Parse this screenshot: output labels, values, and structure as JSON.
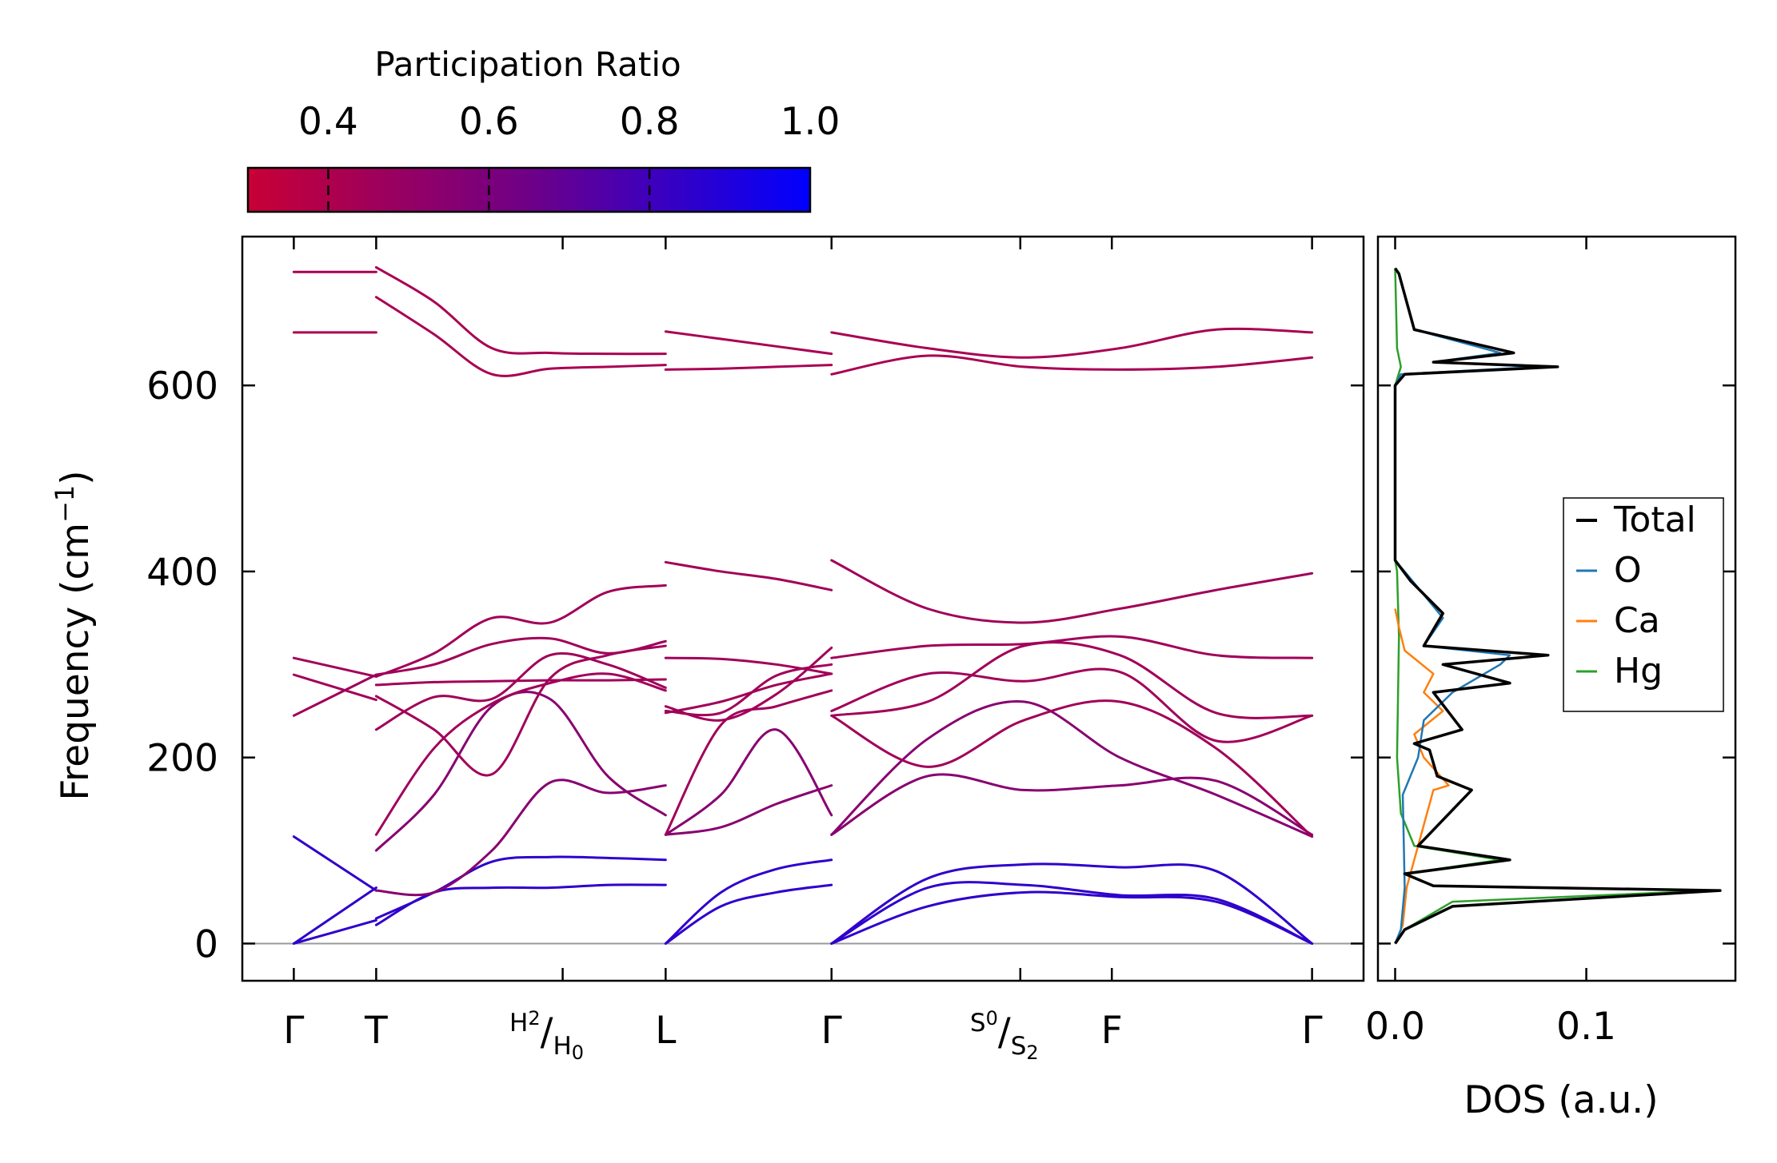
{
  "chart_data": [
    {
      "type": "line",
      "subtype": "phonon-band-structure",
      "ylabel": "Frequency (cm",
      "ylabel_sup": "−1",
      "ylabel_end": ")",
      "ylim": [
        -40,
        760
      ],
      "yticks": [
        {
          "value": 0,
          "label": "0"
        },
        {
          "value": 200,
          "label": "200"
        },
        {
          "value": 400,
          "label": "400"
        },
        {
          "value": 600,
          "label": "600"
        }
      ],
      "kticks": [
        {
          "k": 0.0,
          "label": "Γ"
        },
        {
          "k": 0.72,
          "label": "T"
        },
        {
          "k": 2.35,
          "label": "H",
          "label_sub": "2",
          "label2": "H",
          "label2_sub": "0"
        },
        {
          "k": 3.25,
          "label": "L"
        },
        {
          "k": 4.7,
          "label": "Γ"
        },
        {
          "k": 6.35,
          "label": "S",
          "label_sub": "0",
          "label2": "S",
          "label2_sub": "2"
        },
        {
          "k": 7.15,
          "label": "F"
        },
        {
          "k": 8.9,
          "label": "Γ"
        }
      ],
      "xlim": [
        -0.45,
        9.35
      ],
      "segments": [
        {
          "k_start": 0.0,
          "k_end": 0.72,
          "bands": [
            [
              0,
              60
            ],
            [
              0,
              25
            ],
            [
              115,
              57
            ],
            [
              245,
              289
            ],
            [
              289,
              262
            ],
            [
              307,
              287
            ],
            [
              657,
              657
            ],
            [
              722,
              722
            ]
          ]
        },
        {
          "k_start": 0.72,
          "k_end": 3.25,
          "bands": [
            [
              20,
              55,
              60,
              60,
              63,
              63
            ],
            [
              27,
              55,
              88,
              93,
              92,
              90
            ],
            [
              57,
              55,
              100,
              173,
              162,
              170
            ],
            [
              100,
              160,
              255,
              263,
              180,
              138
            ],
            [
              117,
              210,
              258,
              280,
              290,
              272
            ],
            [
              230,
              265,
              263,
              310,
              300,
              275
            ],
            [
              266,
              230,
              182,
              285,
              310,
              320
            ],
            [
              278,
              281,
              282,
              283,
              283,
              284
            ],
            [
              287,
              312,
              350,
              345,
              378,
              385
            ],
            [
              289,
              300,
              322,
              328,
              312,
              325
            ],
            [
              695,
              655,
              612,
              618,
              620,
              622
            ],
            [
              727,
              690,
              640,
              635,
              634,
              634
            ]
          ]
        },
        {
          "k_start": 3.25,
          "k_end": 4.7,
          "bands": [
            [
              0,
              40,
              55,
              63
            ],
            [
              0,
              55,
              80,
              90
            ],
            [
              117,
              125,
              150,
              170
            ],
            [
              117,
              160,
              230,
              138
            ],
            [
              117,
              235,
              255,
              272
            ],
            [
              250,
              248,
              288,
              300
            ],
            [
              255,
              240,
              268,
              318
            ],
            [
              248,
              260,
              278,
              290
            ],
            [
              307,
              306,
              300,
              290
            ],
            [
              410,
              400,
              392,
              380
            ],
            [
              617,
              618,
              620,
              622
            ],
            [
              658,
              650,
              642,
              634
            ]
          ]
        },
        {
          "k_start": 4.7,
          "k_end": 8.9,
          "bands": [
            [
              0,
              60,
              63,
              52,
              48,
              0
            ],
            [
              0,
              70,
              85,
              82,
              78,
              0
            ],
            [
              0,
              40,
              55,
              50,
              45,
              0
            ],
            [
              117,
              180,
              165,
              170,
              175,
              117
            ],
            [
              117,
              220,
              260,
              200,
              160,
              115
            ],
            [
              245,
              190,
              240,
              260,
              210,
              115
            ],
            [
              250,
              290,
              282,
              292,
              218,
              245
            ],
            [
              245,
              260,
              320,
              310,
              248,
              245
            ],
            [
              307,
              320,
              322,
              330,
              310,
              307
            ],
            [
              412,
              360,
              345,
              360,
              380,
              398
            ],
            [
              612,
              632,
              620,
              617,
              620,
              630
            ],
            [
              657,
              640,
              630,
              640,
              660,
              657
            ]
          ]
        }
      ],
      "zero_line": 0
    },
    {
      "type": "line",
      "subtype": "density-of-states",
      "xlabel": "DOS (a.u.)",
      "xlim": [
        -0.009,
        0.178
      ],
      "xticks": [
        {
          "value": 0.0,
          "label": "0.0"
        },
        {
          "value": 0.1,
          "label": "0.1"
        }
      ],
      "legend": {
        "placement": "center-right"
      },
      "series": [
        {
          "name": "Total",
          "color": "#000000",
          "points": [
            [
              0,
              0
            ],
            [
              0.005,
              15
            ],
            [
              0.03,
              40
            ],
            [
              0.17,
              57
            ],
            [
              0.02,
              62
            ],
            [
              0.005,
              75
            ],
            [
              0.06,
              90
            ],
            [
              0.012,
              105
            ],
            [
              0.04,
              165
            ],
            [
              0.022,
              180
            ],
            [
              0.018,
              208
            ],
            [
              0.01,
              215
            ],
            [
              0.035,
              230
            ],
            [
              0.02,
              270
            ],
            [
              0.06,
              280
            ],
            [
              0.025,
              300
            ],
            [
              0.08,
              310
            ],
            [
              0.015,
              320
            ],
            [
              0.025,
              355
            ],
            [
              0.008,
              390
            ],
            [
              0,
              412
            ],
            [
              0,
              600
            ],
            [
              0.005,
              612
            ],
            [
              0.085,
              620
            ],
            [
              0.02,
              625
            ],
            [
              0.062,
              635
            ],
            [
              0.01,
              660
            ],
            [
              0.002,
              720
            ],
            [
              0,
              726
            ]
          ]
        },
        {
          "name": "O",
          "color": "#1f77b4",
          "points": [
            [
              0,
              0
            ],
            [
              0.003,
              15
            ],
            [
              0.005,
              60
            ],
            [
              0.004,
              160
            ],
            [
              0.012,
              200
            ],
            [
              0.015,
              240
            ],
            [
              0.03,
              270
            ],
            [
              0.055,
              300
            ],
            [
              0.06,
              310
            ],
            [
              0.015,
              320
            ],
            [
              0.025,
              350
            ],
            [
              0.007,
              395
            ],
            [
              0,
              412
            ],
            [
              0,
              600
            ],
            [
              0.003,
              612
            ],
            [
              0.075,
              620
            ],
            [
              0.02,
              625
            ],
            [
              0.055,
              635
            ],
            [
              0.01,
              660
            ],
            [
              0.002,
              720
            ],
            [
              0,
              726
            ]
          ]
        },
        {
          "name": "Ca",
          "color": "#ff7f0e",
          "points": [
            [
              0,
              0
            ],
            [
              0.004,
              20
            ],
            [
              0.006,
              60
            ],
            [
              0.02,
              165
            ],
            [
              0.028,
              170
            ],
            [
              0.015,
              200
            ],
            [
              0.01,
              225
            ],
            [
              0.025,
              250
            ],
            [
              0.015,
              270
            ],
            [
              0.02,
              290
            ],
            [
              0.005,
              315
            ],
            [
              0.002,
              340
            ],
            [
              0,
              360
            ]
          ]
        },
        {
          "name": "Hg",
          "color": "#2ca02c",
          "points": [
            [
              0,
              0
            ],
            [
              0.005,
              15
            ],
            [
              0.03,
              45
            ],
            [
              0.165,
              57
            ],
            [
              0.02,
              62
            ],
            [
              0.005,
              75
            ],
            [
              0.055,
              90
            ],
            [
              0.01,
              105
            ],
            [
              0.003,
              140
            ],
            [
              0.001,
              200
            ],
            [
              0.002,
              330
            ],
            [
              0.001,
              400
            ],
            [
              0,
              412
            ],
            [
              0,
              600
            ],
            [
              0.003,
              620
            ],
            [
              0.001,
              640
            ],
            [
              0,
              726
            ]
          ]
        }
      ]
    }
  ],
  "colorbar": {
    "title": "Participation Ratio",
    "range": [
      0.3,
      1.0
    ],
    "tick_values": [
      0.4,
      0.6,
      0.8,
      1.0
    ],
    "tick_labels": [
      "0.4",
      "0.6",
      "0.8",
      "1.0"
    ],
    "colors": [
      "#c80036",
      "#6e0087",
      "#0000ff"
    ]
  }
}
